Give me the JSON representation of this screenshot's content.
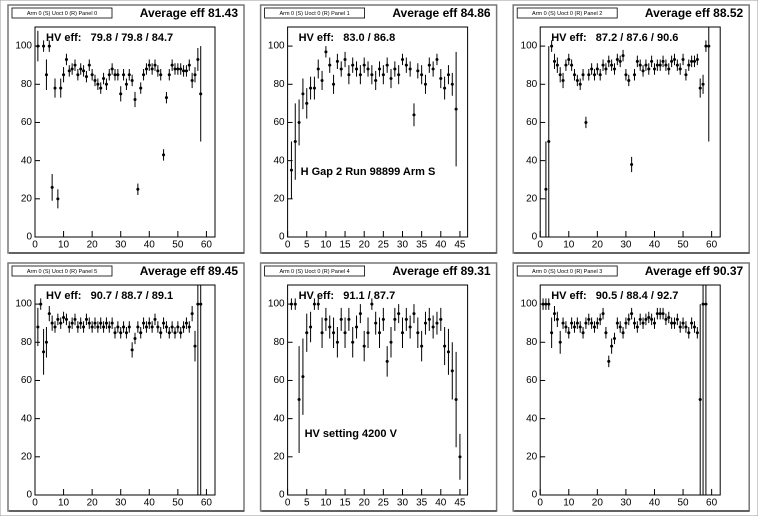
{
  "chart_data": [
    {
      "type": "scatter",
      "title": "Arm 0 (S) Uoct 0 (R) Panel 0",
      "average_label": "Average eff 81.43",
      "hv_label": "HV eff:   79.8 / 79.8 / 84.7",
      "x": [
        1,
        3,
        4,
        5,
        6,
        7,
        8,
        9,
        10,
        11,
        12,
        13,
        14,
        15,
        16,
        17,
        18,
        19,
        20,
        21,
        22,
        23,
        24,
        25,
        26,
        27,
        28,
        29,
        30,
        31,
        32,
        33,
        34,
        35,
        36,
        37,
        38,
        39,
        40,
        41,
        42,
        43,
        44,
        45,
        46,
        47,
        48,
        49,
        50,
        51,
        52,
        53,
        54,
        55,
        56,
        57,
        58
      ],
      "values": [
        100,
        100,
        85,
        100,
        26,
        78,
        20,
        78,
        85,
        93,
        87,
        88,
        90,
        85,
        88,
        87,
        84,
        90,
        85,
        82,
        80,
        78,
        83,
        80,
        85,
        88,
        85,
        85,
        75,
        85,
        80,
        85,
        82,
        72,
        25,
        78,
        85,
        88,
        90,
        88,
        90,
        87,
        85,
        43,
        73,
        85,
        90,
        88,
        88,
        88,
        87,
        87,
        90,
        82,
        85,
        93,
        75
      ],
      "errors": [
        8,
        3,
        8,
        3,
        7,
        5,
        5,
        5,
        4,
        3,
        3,
        3,
        3,
        3,
        3,
        3,
        3,
        3,
        3,
        3,
        3,
        3,
        3,
        3,
        3,
        3,
        3,
        3,
        4,
        3,
        3,
        3,
        3,
        4,
        3,
        3,
        3,
        3,
        3,
        3,
        3,
        3,
        3,
        3,
        3,
        3,
        3,
        3,
        3,
        3,
        3,
        3,
        3,
        4,
        4,
        6,
        25
      ],
      "xlim": [
        0,
        63
      ],
      "xticks": [
        0,
        10,
        20,
        30,
        40,
        50,
        60
      ],
      "ylim": [
        0,
        110
      ],
      "yticks": [
        0,
        20,
        40,
        60,
        80,
        100
      ]
    },
    {
      "type": "scatter",
      "title": "Arm 0 (S) Uoct 0 (R) Panel 1",
      "average_label": "Average eff 84.86",
      "hv_label": "HV eff:   83.0 / 86.8",
      "annotation": "H Gap 2 Run 98899 Arm S",
      "x": [
        1,
        2,
        3,
        4,
        5,
        6,
        7,
        8,
        9,
        10,
        11,
        12,
        13,
        14,
        15,
        16,
        17,
        18,
        19,
        20,
        21,
        22,
        23,
        24,
        25,
        26,
        27,
        28,
        29,
        30,
        31,
        32,
        33,
        34,
        35,
        36,
        37,
        38,
        39,
        40,
        41,
        42,
        43,
        44
      ],
      "values": [
        35,
        50,
        60,
        75,
        70,
        78,
        78,
        88,
        82,
        97,
        90,
        80,
        92,
        88,
        93,
        85,
        90,
        88,
        85,
        90,
        88,
        85,
        82,
        88,
        85,
        90,
        83,
        88,
        85,
        93,
        90,
        88,
        64,
        87,
        85,
        80,
        90,
        88,
        93,
        83,
        78,
        85,
        80,
        67
      ],
      "errors": [
        15,
        20,
        12,
        8,
        8,
        6,
        6,
        5,
        5,
        3,
        4,
        5,
        4,
        4,
        4,
        5,
        4,
        4,
        5,
        4,
        4,
        5,
        5,
        4,
        5,
        4,
        5,
        4,
        5,
        3,
        4,
        4,
        6,
        4,
        5,
        5,
        4,
        4,
        3,
        5,
        6,
        5,
        6,
        30
      ],
      "xlim": [
        0,
        47
      ],
      "xticks": [
        0,
        5,
        10,
        15,
        20,
        25,
        30,
        35,
        40,
        45
      ],
      "ylim": [
        0,
        110
      ],
      "yticks": [
        0,
        20,
        40,
        60,
        80,
        100
      ]
    },
    {
      "type": "scatter",
      "title": "Arm 0 (S) Uoct 0 (R) Panel 2",
      "average_label": "Average eff 88.52",
      "hv_label": "HV eff:   87.2 / 87.6 / 90.6",
      "x": [
        2,
        3,
        4,
        5,
        6,
        7,
        8,
        9,
        10,
        11,
        12,
        13,
        14,
        15,
        16,
        17,
        18,
        19,
        20,
        21,
        22,
        23,
        24,
        25,
        26,
        27,
        28,
        29,
        30,
        31,
        32,
        33,
        34,
        35,
        36,
        37,
        38,
        39,
        40,
        41,
        42,
        43,
        44,
        45,
        46,
        47,
        48,
        49,
        50,
        51,
        52,
        53,
        54,
        55,
        56,
        57,
        58,
        59
      ],
      "values": [
        25,
        50,
        100,
        92,
        90,
        85,
        82,
        90,
        93,
        90,
        85,
        82,
        80,
        85,
        60,
        85,
        88,
        85,
        88,
        85,
        90,
        88,
        92,
        90,
        88,
        93,
        92,
        95,
        85,
        82,
        38,
        85,
        92,
        90,
        87,
        90,
        88,
        92,
        88,
        90,
        90,
        92,
        90,
        88,
        92,
        93,
        90,
        88,
        93,
        85,
        90,
        92,
        92,
        93,
        78,
        80,
        100,
        100
      ],
      "errors": [
        25,
        50,
        3,
        4,
        4,
        4,
        4,
        3,
        3,
        3,
        3,
        3,
        3,
        3,
        3,
        3,
        3,
        3,
        3,
        3,
        3,
        3,
        3,
        3,
        3,
        3,
        3,
        3,
        3,
        3,
        4,
        3,
        3,
        3,
        3,
        3,
        3,
        3,
        3,
        3,
        3,
        3,
        3,
        3,
        3,
        3,
        3,
        3,
        3,
        3,
        3,
        3,
        3,
        3,
        5,
        5,
        3,
        50
      ],
      "xlim": [
        0,
        63
      ],
      "xticks": [
        0,
        10,
        20,
        30,
        40,
        50,
        60
      ],
      "ylim": [
        0,
        110
      ],
      "yticks": [
        0,
        20,
        40,
        60,
        80,
        100
      ]
    },
    {
      "type": "scatter",
      "title": "Arm 0 (S) Uoct 0 (R) Panel 5",
      "average_label": "Average eff 89.45",
      "hv_label": "HV eff:   90.7 / 88.7 / 89.1",
      "x": [
        1,
        2,
        3,
        4,
        5,
        6,
        7,
        8,
        9,
        10,
        11,
        12,
        13,
        14,
        15,
        16,
        17,
        18,
        19,
        20,
        21,
        22,
        23,
        24,
        25,
        26,
        27,
        28,
        29,
        30,
        31,
        32,
        33,
        34,
        35,
        36,
        37,
        38,
        39,
        40,
        41,
        42,
        43,
        44,
        45,
        46,
        47,
        48,
        49,
        50,
        51,
        52,
        53,
        54,
        55,
        56,
        57,
        58
      ],
      "values": [
        88,
        100,
        75,
        80,
        95,
        90,
        88,
        92,
        90,
        93,
        92,
        88,
        90,
        92,
        88,
        90,
        88,
        92,
        90,
        88,
        90,
        88,
        90,
        88,
        90,
        88,
        90,
        85,
        88,
        85,
        88,
        85,
        88,
        76,
        82,
        88,
        85,
        90,
        88,
        90,
        88,
        92,
        88,
        85,
        90,
        88,
        85,
        88,
        85,
        88,
        85,
        88,
        90,
        88,
        95,
        78,
        100,
        100
      ],
      "errors": [
        10,
        3,
        12,
        8,
        4,
        4,
        3,
        3,
        3,
        3,
        3,
        3,
        3,
        3,
        3,
        3,
        3,
        3,
        3,
        3,
        3,
        3,
        3,
        3,
        3,
        3,
        3,
        3,
        3,
        3,
        3,
        3,
        3,
        4,
        3,
        3,
        3,
        3,
        3,
        3,
        3,
        3,
        3,
        3,
        3,
        3,
        3,
        3,
        3,
        3,
        3,
        3,
        3,
        3,
        4,
        8,
        100,
        100
      ],
      "xlim": [
        0,
        63
      ],
      "xticks": [
        0,
        10,
        20,
        30,
        40,
        50,
        60
      ],
      "ylim": [
        0,
        110
      ],
      "yticks": [
        0,
        20,
        40,
        60,
        80,
        100
      ]
    },
    {
      "type": "scatter",
      "title": "Arm 0 (S) Uoct 0 (R) Panel 4",
      "average_label": "Average eff 89.31",
      "hv_label": "HV eff:   91.1 / 87.7",
      "annotation": "HV setting 4200 V",
      "x": [
        1,
        2,
        3,
        4,
        5,
        6,
        7,
        8,
        9,
        10,
        11,
        12,
        13,
        14,
        15,
        16,
        17,
        18,
        19,
        20,
        21,
        22,
        23,
        24,
        25,
        26,
        27,
        28,
        29,
        30,
        31,
        32,
        33,
        34,
        35,
        36,
        37,
        38,
        39,
        40,
        41,
        42,
        43,
        44,
        45
      ],
      "values": [
        100,
        100,
        50,
        62,
        85,
        88,
        100,
        100,
        85,
        92,
        88,
        85,
        80,
        92,
        85,
        92,
        80,
        88,
        95,
        78,
        85,
        100,
        90,
        85,
        92,
        70,
        80,
        92,
        95,
        85,
        92,
        88,
        95,
        85,
        78,
        90,
        92,
        88,
        90,
        92,
        78,
        75,
        65,
        50,
        20
      ],
      "errors": [
        3,
        3,
        28,
        20,
        10,
        8,
        3,
        3,
        8,
        6,
        6,
        8,
        8,
        6,
        8,
        6,
        8,
        6,
        5,
        8,
        8,
        3,
        6,
        8,
        6,
        8,
        8,
        6,
        5,
        8,
        6,
        6,
        5,
        8,
        8,
        6,
        6,
        6,
        6,
        6,
        10,
        12,
        15,
        25,
        12
      ],
      "xlim": [
        0,
        47
      ],
      "xticks": [
        0,
        5,
        10,
        15,
        20,
        25,
        30,
        35,
        40,
        45
      ],
      "ylim": [
        0,
        110
      ],
      "yticks": [
        0,
        20,
        40,
        60,
        80,
        100
      ]
    },
    {
      "type": "scatter",
      "title": "Arm 0 (S) Uoct 0 (R) Panel 3",
      "average_label": "Average eff 90.37",
      "hv_label": "HV eff:   90.5 / 88.4 / 92.7",
      "x": [
        1,
        2,
        3,
        4,
        5,
        6,
        7,
        8,
        9,
        10,
        11,
        12,
        13,
        14,
        15,
        16,
        17,
        18,
        19,
        20,
        21,
        22,
        23,
        24,
        25,
        26,
        27,
        28,
        29,
        30,
        31,
        32,
        33,
        34,
        35,
        36,
        37,
        38,
        39,
        40,
        41,
        42,
        43,
        44,
        45,
        46,
        47,
        48,
        49,
        50,
        51,
        52,
        53,
        54,
        55,
        56,
        57,
        58
      ],
      "values": [
        100,
        100,
        100,
        85,
        95,
        92,
        80,
        90,
        88,
        85,
        90,
        88,
        90,
        88,
        85,
        90,
        92,
        90,
        88,
        90,
        92,
        95,
        85,
        70,
        78,
        82,
        90,
        88,
        85,
        90,
        92,
        95,
        90,
        88,
        92,
        90,
        92,
        93,
        92,
        90,
        95,
        95,
        95,
        92,
        93,
        90,
        90,
        92,
        88,
        90,
        88,
        85,
        90,
        88,
        85,
        50,
        100,
        100
      ],
      "errors": [
        3,
        3,
        3,
        8,
        4,
        4,
        6,
        3,
        3,
        3,
        3,
        3,
        3,
        3,
        3,
        3,
        3,
        3,
        3,
        3,
        3,
        3,
        3,
        3,
        4,
        3,
        3,
        3,
        3,
        3,
        3,
        3,
        3,
        3,
        3,
        3,
        3,
        3,
        3,
        3,
        3,
        3,
        3,
        3,
        3,
        3,
        3,
        3,
        3,
        3,
        3,
        3,
        3,
        3,
        3,
        50,
        100,
        100
      ],
      "xlim": [
        0,
        63
      ],
      "xticks": [
        0,
        10,
        20,
        30,
        40,
        50,
        60
      ],
      "ylim": [
        0,
        110
      ],
      "yticks": [
        0,
        20,
        40,
        60,
        80,
        100
      ]
    }
  ]
}
